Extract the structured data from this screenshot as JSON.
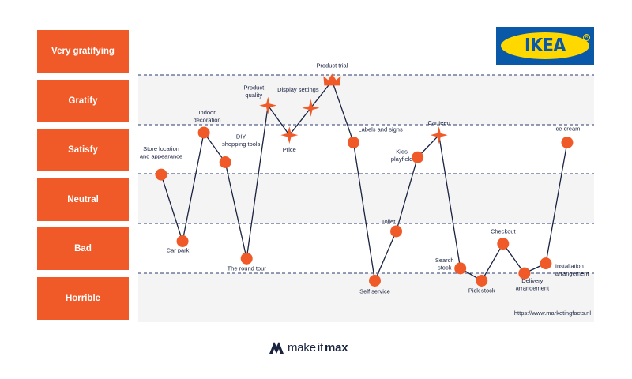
{
  "chart_data": {
    "type": "line",
    "levels": [
      "Very gratifying",
      "Gratify",
      "Satisfy",
      "Neutral",
      "Bad",
      "Horrible"
    ],
    "points": [
      {
        "label": "Store location\nand appearance",
        "x": 1,
        "y": 3.15,
        "marker": "circle"
      },
      {
        "label": "Car park",
        "x": 2,
        "y": 1.8,
        "marker": "circle"
      },
      {
        "label": "Indoor\ndecoration",
        "x": 3,
        "y": 4.0,
        "marker": "circle"
      },
      {
        "label": "DIY\nshopping tools",
        "x": 4,
        "y": 3.4,
        "marker": "circle"
      },
      {
        "label": "The round tour",
        "x": 5,
        "y": 1.45,
        "marker": "circle"
      },
      {
        "label": "Product\nquality",
        "x": 6,
        "y": 4.55,
        "marker": "sparkle"
      },
      {
        "label": "Price",
        "x": 7,
        "y": 3.95,
        "marker": "sparkle"
      },
      {
        "label": "Display settings",
        "x": 8,
        "y": 4.5,
        "marker": "sparkle"
      },
      {
        "label": "Product trial",
        "x": 9,
        "y": 5.05,
        "marker": "crown"
      },
      {
        "label": "Labels and signs",
        "x": 10,
        "y": 3.8,
        "marker": "circle"
      },
      {
        "label": "Self service",
        "x": 11,
        "y": 1.0,
        "marker": "circle"
      },
      {
        "label": "Toilet",
        "x": 12,
        "y": 2.0,
        "marker": "circle"
      },
      {
        "label": "Kids\nplayfield",
        "x": 13,
        "y": 3.5,
        "marker": "circle"
      },
      {
        "label": "Canteen",
        "x": 14,
        "y": 3.95,
        "marker": "sparkle"
      },
      {
        "label": "Search\nstock",
        "x": 15,
        "y": 1.25,
        "marker": "circle"
      },
      {
        "label": "Pick stock",
        "x": 16,
        "y": 1.0,
        "marker": "circle"
      },
      {
        "label": "Checkout",
        "x": 17,
        "y": 1.75,
        "marker": "circle"
      },
      {
        "label": "Delivery\narrangement",
        "x": 18,
        "y": 1.15,
        "marker": "circle"
      },
      {
        "label": "Installation\narrangement",
        "x": 19,
        "y": 1.35,
        "marker": "circle"
      },
      {
        "label": "Ice cream",
        "x": 20,
        "y": 3.8,
        "marker": "circle"
      }
    ],
    "ylim": [
      0,
      6
    ],
    "grid": "dashed horizontal lines between levels"
  },
  "source": "https://www.marketingfacts.nl",
  "logo": {
    "text": "IKEA",
    "registered": "R"
  },
  "brand": {
    "name": "make it max",
    "name_part1": "make",
    "name_part2": "it",
    "name_part3": "max"
  },
  "colors": {
    "accent": "#f05a28",
    "line": "#1a2340",
    "band": "#f4f4f4",
    "grid": "#2b3a6b",
    "ikea_blue": "#0a58a8",
    "ikea_yellow": "#ffd800"
  }
}
